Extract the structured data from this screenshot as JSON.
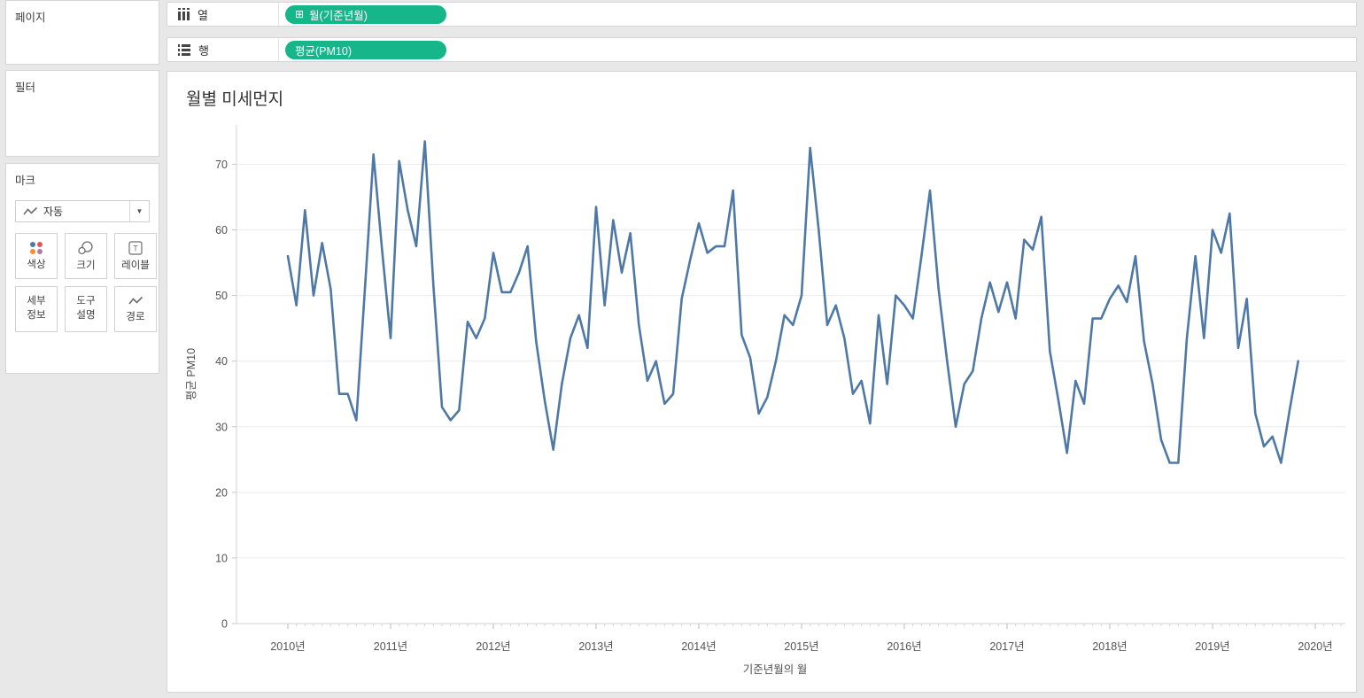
{
  "panels": {
    "pages": {
      "title": "페이지"
    },
    "filters": {
      "title": "필터"
    },
    "marks": {
      "title": "마크",
      "mark_type": {
        "label": "자동",
        "icon": "line-mark-icon"
      },
      "buttons": [
        {
          "id": "color",
          "label": "색상",
          "icon": "color-dots-icon"
        },
        {
          "id": "size",
          "label": "크기",
          "icon": "size-circles-icon"
        },
        {
          "id": "label",
          "label": "레이블",
          "icon": "text-box-icon"
        },
        {
          "id": "detail",
          "line1": "세부",
          "line2": "정보"
        },
        {
          "id": "tooltip",
          "line1": "도구",
          "line2": "설명"
        },
        {
          "id": "path",
          "label": "경로",
          "icon": "path-line-icon"
        }
      ],
      "dot_colors": [
        "#4e79a7",
        "#e15759",
        "#f28e2b",
        "#b07aa1"
      ]
    }
  },
  "shelves": {
    "columns": {
      "label": "열",
      "pill": {
        "text": "월(기준년월)",
        "icon": "plus-box-icon",
        "icon_glyph": "⊞"
      }
    },
    "rows": {
      "label": "행",
      "pill": {
        "text": "평균(PM10)"
      }
    },
    "pill_color": "#17b58a"
  },
  "chart": {
    "title": "월별 미세먼지"
  },
  "chart_data": {
    "type": "line",
    "title": "월별 미세먼지",
    "xlabel": "기준년월의 월",
    "ylabel": "평균 PM10",
    "start": "2010-01",
    "frequency": "monthly",
    "ylim": [
      0,
      76
    ],
    "y_ticks": [
      0,
      10,
      20,
      30,
      40,
      50,
      60,
      70
    ],
    "x_tick_labels": [
      "2010년",
      "2011년",
      "2012년",
      "2013년",
      "2014년",
      "2015년",
      "2016년",
      "2017년",
      "2018년",
      "2019년",
      "2020년"
    ],
    "grid": "horizontal",
    "line_color": "#4e79a7",
    "values": [
      56,
      48.5,
      63,
      50,
      58,
      51,
      35,
      35,
      31,
      51,
      71.5,
      57,
      43.5,
      70.5,
      63,
      57.5,
      73.5,
      51.5,
      33,
      31,
      32.5,
      46,
      43.5,
      46.5,
      56.5,
      50.5,
      50.5,
      53.5,
      57.5,
      43,
      34,
      26.5,
      36.5,
      43.5,
      47,
      42,
      63.5,
      48.5,
      61.5,
      53.5,
      59.5,
      45.5,
      37,
      40,
      33.5,
      35,
      49.5,
      55.5,
      61,
      56.5,
      57.5,
      57.5,
      66,
      44,
      40.5,
      32,
      34.5,
      40,
      47,
      45.5,
      50,
      72.5,
      60,
      45.5,
      48.5,
      43.5,
      35,
      37,
      30.5,
      47,
      36.5,
      50,
      48.5,
      46.5,
      56,
      66,
      51,
      40,
      30,
      36.5,
      38.5,
      46.5,
      52,
      47.5,
      52,
      46.5,
      58.5,
      57,
      62,
      41.5,
      34,
      26,
      37,
      33.5,
      46.5,
      46.5,
      49.5,
      51.5,
      49,
      56,
      43,
      36.5,
      28,
      24.5,
      24.5,
      43.5,
      56,
      43.5,
      60,
      56.5,
      62.5,
      42,
      49.5,
      32,
      27,
      28.5,
      24.5,
      32.5,
      40
    ]
  }
}
